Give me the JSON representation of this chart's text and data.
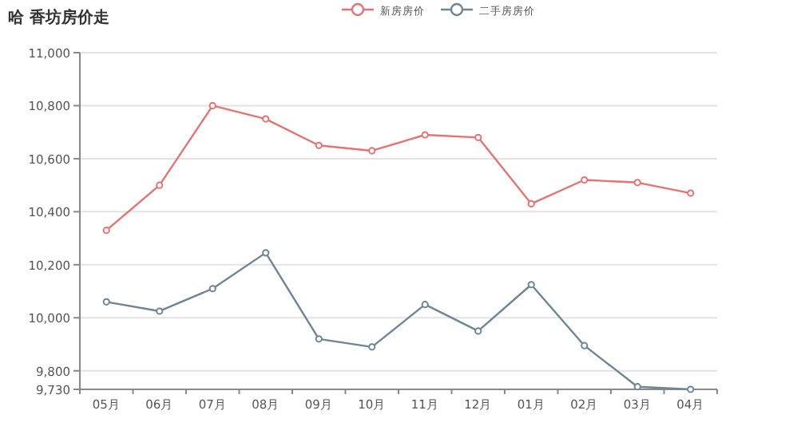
{
  "chart_data": {
    "type": "line",
    "title": "哈  香坊房价走",
    "categories": [
      "05月",
      "06月",
      "07月",
      "08月",
      "09月",
      "10月",
      "11月",
      "12月",
      "01月",
      "02月",
      "03月",
      "04月"
    ],
    "series": [
      {
        "name": "新房房价",
        "color": "#e57373",
        "values": [
          10330,
          10500,
          10800,
          10750,
          10650,
          10630,
          10690,
          10680,
          10430,
          10520,
          10510,
          10470
        ]
      },
      {
        "name": "二手房房价",
        "color": "#6e8596",
        "values": [
          10060,
          10025,
          10110,
          10245,
          9920,
          9890,
          10050,
          9950,
          10125,
          9895,
          9740,
          9730
        ]
      }
    ],
    "ylim": [
      9730,
      11000
    ],
    "yticks": [
      {
        "value": 9730,
        "label": "9,730"
      },
      {
        "value": 9800,
        "label": "9,800"
      },
      {
        "value": 10000,
        "label": "10,000"
      },
      {
        "value": 10200,
        "label": "10,200"
      },
      {
        "value": 10400,
        "label": "10,400"
      },
      {
        "value": 10600,
        "label": "10,600"
      },
      {
        "value": 10800,
        "label": "10,800"
      },
      {
        "value": 11000,
        "label": "11,000"
      }
    ],
    "grid": "y",
    "legend": "top",
    "marker": "circle",
    "line_style": "solid"
  }
}
